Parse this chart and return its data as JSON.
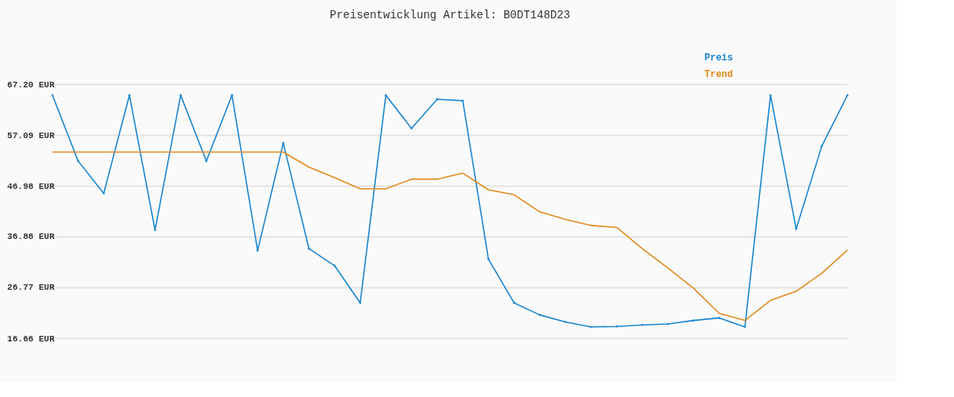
{
  "chart_data": {
    "type": "line",
    "title": "Preisentwicklung Artikel: B0DT148D23",
    "categories": [
      null,
      null,
      null,
      null,
      null,
      null,
      null,
      null,
      null,
      null,
      null,
      null,
      null,
      null,
      null,
      null,
      null,
      null,
      null,
      null,
      null,
      null,
      null,
      null,
      null,
      null,
      null,
      null,
      null,
      null,
      null,
      null
    ],
    "series": [
      {
        "name": "Preis",
        "color": "#1b85d0",
        "marker": "diamond",
        "values": [
          65.0,
          51.9,
          45.5,
          65.0,
          38.2,
          65.0,
          51.9,
          65.0,
          34.1,
          55.5,
          34.5,
          31.1,
          23.7,
          65.0,
          58.4,
          64.2,
          63.9,
          32.4,
          23.7,
          21.3,
          19.9,
          18.9,
          19.0,
          19.3,
          19.5,
          20.2,
          20.7,
          18.9,
          65.0,
          38.4,
          54.9,
          65.0
        ]
      },
      {
        "name": "Trend",
        "color": "#e08a1e",
        "marker": "none",
        "values": [
          53.7,
          53.7,
          53.7,
          53.7,
          53.7,
          53.7,
          53.7,
          53.7,
          53.7,
          53.7,
          50.7,
          48.6,
          46.4,
          46.4,
          48.3,
          48.3,
          49.5,
          46.2,
          45.2,
          41.8,
          40.3,
          39.1,
          38.7,
          34.5,
          30.6,
          26.6,
          21.6,
          20.2,
          24.2,
          26.0,
          29.6,
          34.2
        ]
      }
    ],
    "ylim": [
      16.66,
      67.2
    ],
    "yticks": [
      {
        "value": 16.66,
        "label": "16.66 EUR"
      },
      {
        "value": 26.77,
        "label": "26.77 EUR"
      },
      {
        "value": 36.88,
        "label": "36.88 EUR"
      },
      {
        "value": 46.98,
        "label": "46.98 EUR"
      },
      {
        "value": 57.09,
        "label": "57.09 EUR"
      },
      {
        "value": 67.2,
        "label": "67.20 EUR"
      }
    ],
    "grid": "y",
    "legend": "top right",
    "tick_labels": "y",
    "line_style": "solid"
  }
}
